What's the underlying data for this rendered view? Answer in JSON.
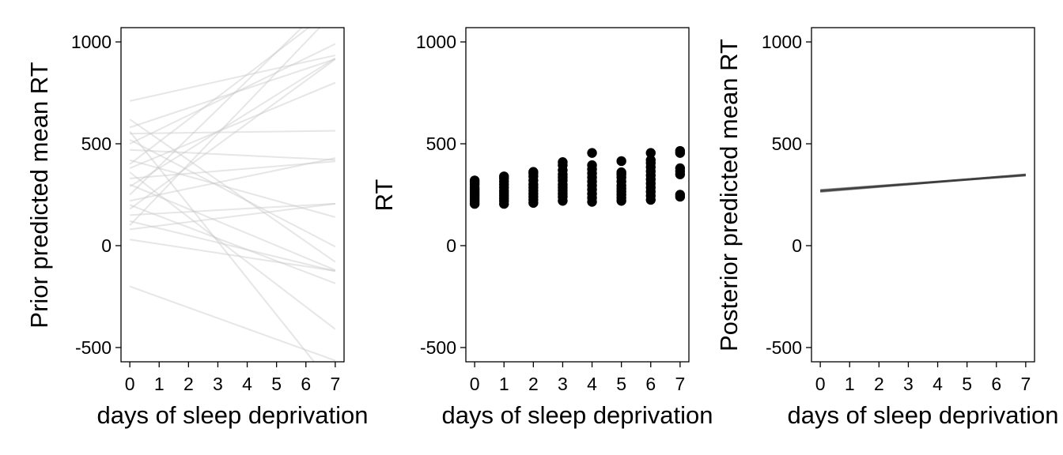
{
  "chart_data": [
    {
      "type": "line",
      "panel": "prior-predictive",
      "title": "",
      "xlabel": "days of sleep deprivation",
      "ylabel": "Prior predicted mean RT",
      "xlim": [
        -0.3,
        7.3
      ],
      "ylim": [
        -570,
        1070
      ],
      "xticks": [
        0,
        1,
        2,
        3,
        4,
        5,
        6,
        7
      ],
      "yticks": [
        -500,
        0,
        500,
        1000
      ],
      "ytick_labels": [
        "-500",
        "0",
        "500",
        "1000"
      ],
      "line_color": "#c8c8c8",
      "line_opacity": 0.45,
      "lines": [
        {
          "intercept": 710,
          "slope": 32
        },
        {
          "intercept": 620,
          "slope": -100
        },
        {
          "intercept": 580,
          "slope": 48
        },
        {
          "intercept": 560,
          "slope": -180
        },
        {
          "intercept": 550,
          "slope": 2
        },
        {
          "intercept": 520,
          "slope": -75
        },
        {
          "intercept": 500,
          "slope": 70
        },
        {
          "intercept": 470,
          "slope": -7
        },
        {
          "intercept": 420,
          "slope": -40
        },
        {
          "intercept": 400,
          "slope": 110
        },
        {
          "intercept": 380,
          "slope": 60
        },
        {
          "intercept": 360,
          "slope": -110
        },
        {
          "intercept": 330,
          "slope": 12
        },
        {
          "intercept": 300,
          "slope": -60
        },
        {
          "intercept": 290,
          "slope": 90
        },
        {
          "intercept": 250,
          "slope": 140
        },
        {
          "intercept": 220,
          "slope": 30
        },
        {
          "intercept": 200,
          "slope": -55
        },
        {
          "intercept": 180,
          "slope": 105
        },
        {
          "intercept": 150,
          "slope": 8
        },
        {
          "intercept": 120,
          "slope": -35
        },
        {
          "intercept": 100,
          "slope": 150
        },
        {
          "intercept": 80,
          "slope": 18
        },
        {
          "intercept": 30,
          "slope": -22
        },
        {
          "intercept": -200,
          "slope": -52
        }
      ]
    },
    {
      "type": "scatter",
      "panel": "observed-data",
      "title": "",
      "xlabel": "days of sleep deprivation",
      "ylabel": "RT",
      "xlim": [
        -0.3,
        7.3
      ],
      "ylim": [
        -570,
        1070
      ],
      "xticks": [
        0,
        1,
        2,
        3,
        4,
        5,
        6,
        7
      ],
      "yticks": [
        -500,
        0,
        500,
        1000
      ],
      "ytick_labels": [
        "-500",
        "0",
        "500",
        "1000"
      ],
      "point_color": "#000000",
      "points": [
        {
          "x": 0,
          "y": [
            205,
            215,
            225,
            235,
            245,
            255,
            265,
            275,
            285,
            300,
            310,
            320
          ]
        },
        {
          "x": 1,
          "y": [
            205,
            220,
            232,
            245,
            258,
            270,
            285,
            300,
            315,
            330,
            340
          ]
        },
        {
          "x": 2,
          "y": [
            210,
            225,
            240,
            255,
            270,
            285,
            300,
            320,
            340,
            355,
            362
          ]
        },
        {
          "x": 3,
          "y": [
            220,
            240,
            255,
            270,
            285,
            300,
            320,
            335,
            350,
            370,
            395,
            410
          ]
        },
        {
          "x": 4,
          "y": [
            215,
            235,
            255,
            275,
            295,
            315,
            335,
            355,
            375,
            395,
            455
          ]
        },
        {
          "x": 5,
          "y": [
            220,
            235,
            250,
            265,
            280,
            295,
            315,
            335,
            350,
            360,
            415
          ]
        },
        {
          "x": 6,
          "y": [
            225,
            245,
            265,
            285,
            305,
            325,
            345,
            365,
            385,
            405,
            420,
            455
          ]
        },
        {
          "x": 7,
          "y": [
            240,
            250,
            350,
            365,
            380,
            455,
            465
          ]
        }
      ]
    },
    {
      "type": "line",
      "panel": "posterior-predictive",
      "title": "",
      "xlabel": "days of sleep deprivation",
      "ylabel": "Posterior predicted mean RT",
      "xlim": [
        -0.3,
        7.3
      ],
      "ylim": [
        -570,
        1070
      ],
      "xticks": [
        0,
        1,
        2,
        3,
        4,
        5,
        6,
        7
      ],
      "yticks": [
        -500,
        0,
        500,
        1000
      ],
      "ytick_labels": [
        "-500",
        "0",
        "500",
        "1000"
      ],
      "line_color": "#333333",
      "line_opacity": 0.3,
      "lines": [
        {
          "intercept": 266,
          "slope": 11.8
        },
        {
          "intercept": 268,
          "slope": 11.5
        },
        {
          "intercept": 270,
          "slope": 11.0
        },
        {
          "intercept": 272,
          "slope": 10.6
        },
        {
          "intercept": 264,
          "slope": 12.2
        },
        {
          "intercept": 267,
          "slope": 11.3
        },
        {
          "intercept": 269,
          "slope": 10.9
        },
        {
          "intercept": 273,
          "slope": 10.2
        }
      ]
    }
  ]
}
